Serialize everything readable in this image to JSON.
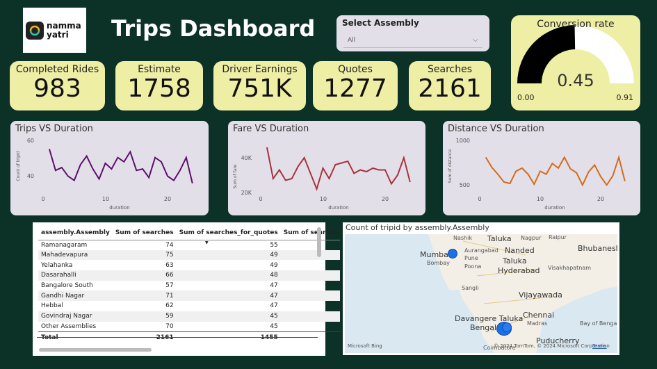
{
  "logo": {
    "line1": "namma",
    "line2": "yatri"
  },
  "title": "Trips Dashboard",
  "slicer": {
    "label": "Select Assembly",
    "value": "All"
  },
  "kpis": {
    "completed": {
      "label": "Completed Rides",
      "value": "983"
    },
    "estimate": {
      "label": "Estimate",
      "value": "1758"
    },
    "earnings": {
      "label": "Driver Earnings",
      "value": "751K"
    },
    "quotes": {
      "label": "Quotes",
      "value": "1277"
    },
    "searches": {
      "label": "Searches",
      "value": "2161"
    }
  },
  "gauge": {
    "title": "Conversion rate",
    "value": "0.45",
    "min": "0.00",
    "max": "0.91",
    "fill": 0.45,
    "max_value": 0.91
  },
  "charts": {
    "trips": {
      "title": "Trips VS Duration",
      "ylabel": "Count of tripid",
      "xlabel": "duration",
      "yticks": [
        "60",
        "40"
      ],
      "xticks": [
        "0",
        "10",
        "20"
      ]
    },
    "fare": {
      "title": "Fare VS Duration",
      "ylabel": "Sum of fare",
      "xlabel": "duration",
      "yticks": [
        "40K",
        "20K"
      ],
      "xticks": [
        "0",
        "10",
        "20"
      ]
    },
    "distance": {
      "title": "Distance VS Duration",
      "ylabel": "Sum of distance",
      "xlabel": "duration",
      "yticks": [
        "1000",
        "500"
      ],
      "xticks": [
        "0",
        "10",
        "20"
      ]
    }
  },
  "chart_data": [
    {
      "type": "line",
      "title": "Trips VS Duration",
      "xlabel": "duration",
      "ylabel": "Count of tripid",
      "color": "#5b0f6b",
      "x": [
        1,
        2,
        3,
        4,
        5,
        6,
        7,
        8,
        9,
        10,
        11,
        12,
        13,
        14,
        15,
        16,
        17,
        18,
        19,
        20,
        21,
        22,
        23,
        24
      ],
      "values": [
        54,
        39,
        41,
        35,
        32,
        43,
        49,
        40,
        33,
        44,
        40,
        48,
        45,
        52,
        39,
        40,
        34,
        48,
        45,
        35,
        32,
        39,
        48,
        30
      ],
      "ylim": [
        25,
        60
      ],
      "xlim": [
        0,
        25
      ]
    },
    {
      "type": "line",
      "title": "Fare VS Duration",
      "xlabel": "duration",
      "ylabel": "Sum of fare",
      "color": "#a8323c",
      "x": [
        1,
        2,
        3,
        4,
        5,
        6,
        7,
        8,
        9,
        10,
        11,
        12,
        13,
        14,
        15,
        16,
        17,
        18,
        19,
        20,
        21,
        22,
        23,
        24
      ],
      "values": [
        46000,
        28000,
        33000,
        27000,
        28000,
        35000,
        40000,
        31000,
        22000,
        34000,
        28000,
        36000,
        37000,
        38000,
        31000,
        33000,
        32000,
        34000,
        33000,
        33000,
        25000,
        30000,
        40000,
        26000
      ],
      "ylim": [
        18000,
        50000
      ],
      "xlim": [
        0,
        25
      ]
    },
    {
      "type": "line",
      "title": "Distance VS Duration",
      "xlabel": "duration",
      "ylabel": "Sum of distance",
      "color": "#d16c1a",
      "x": [
        1,
        2,
        3,
        4,
        5,
        6,
        7,
        8,
        9,
        10,
        11,
        12,
        13,
        14,
        15,
        16,
        17,
        18,
        19,
        20,
        21,
        22,
        23,
        24
      ],
      "values": [
        780,
        650,
        560,
        460,
        440,
        600,
        640,
        560,
        430,
        600,
        560,
        700,
        640,
        780,
        630,
        580,
        420,
        590,
        680,
        530,
        420,
        540,
        780,
        470
      ],
      "ylim": [
        350,
        1000
      ],
      "xlim": [
        0,
        25
      ]
    }
  ],
  "table": {
    "headers": [
      "assembly.Assembly",
      "Sum of searches",
      "Sum of searches_for_quotes",
      "Sum of searches_g"
    ],
    "rows": [
      [
        "Ramanagaram",
        "74",
        "55"
      ],
      [
        "Mahadevapura",
        "75",
        "49"
      ],
      [
        "Yelahanka",
        "63",
        "49"
      ],
      [
        "Dasarahalli",
        "66",
        "48"
      ],
      [
        "Bangalore South",
        "57",
        "47"
      ],
      [
        "Gandhi Nagar",
        "71",
        "47"
      ],
      [
        "Hebbal",
        "62",
        "47"
      ],
      [
        "Govindraj Nagar",
        "59",
        "45"
      ],
      [
        "Other Assemblies",
        "70",
        "45"
      ]
    ],
    "total": [
      "Total",
      "2161",
      "1455"
    ]
  },
  "map": {
    "title": "Count of tripid by assembly.Assembly",
    "labels": [
      "Nashik",
      "Taluka",
      "Nagpur",
      "Raipur",
      "Aurangabad",
      "Nanded",
      "Mumbai",
      "Bombay",
      "Pune",
      "Taluka",
      "Bhubaneshv",
      "Poona",
      "Hyderabad",
      "Visakhapatnam",
      "Sangli",
      "Vijayawada",
      "Chennai",
      "Davangere Taluka",
      "Madras",
      "Bengaluru",
      "Bay of Benga",
      "Puducherry",
      "Coimbatore"
    ],
    "footer_brand": "Microsoft Bing",
    "footer_copy": "© 2024 TomTom, © 2024 Microsoft Corporation",
    "footer_terms": "Terms"
  }
}
